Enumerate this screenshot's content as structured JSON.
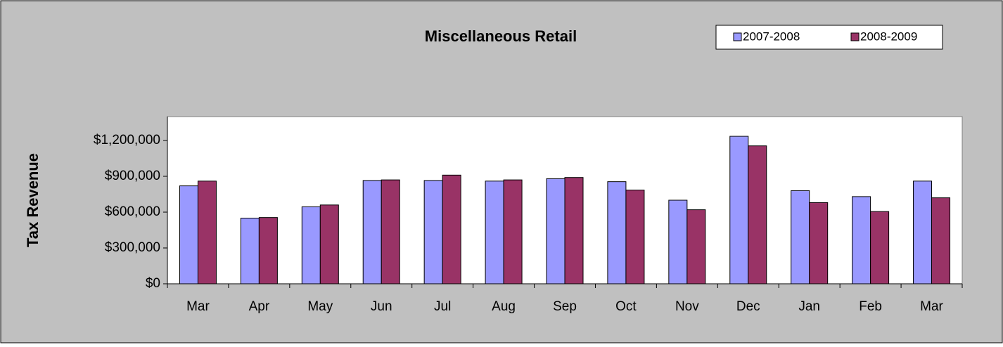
{
  "chart_data": {
    "type": "bar",
    "title": "Miscellaneous Retail",
    "y_label": "Tax Revenue",
    "categories": [
      "Mar",
      "Apr",
      "May",
      "Jun",
      "Jul",
      "Aug",
      "Sep",
      "Oct",
      "Nov",
      "Dec",
      "Jan",
      "Feb",
      "Mar"
    ],
    "series": [
      {
        "name": "2007-2008",
        "color": "#9999ff",
        "values": [
          820000,
          550000,
          645000,
          865000,
          865000,
          860000,
          880000,
          855000,
          700000,
          1235000,
          780000,
          730000,
          860000
        ]
      },
      {
        "name": "2008-2009",
        "color": "#993366",
        "values": [
          860000,
          555000,
          660000,
          870000,
          910000,
          870000,
          890000,
          785000,
          620000,
          1155000,
          680000,
          605000,
          720000
        ]
      }
    ],
    "ylim": [
      0,
      1400000
    ],
    "yticks": [
      {
        "value": 0,
        "label": "$0"
      },
      {
        "value": 300000,
        "label": "$300,000"
      },
      {
        "value": 600000,
        "label": "$600,000"
      },
      {
        "value": 900000,
        "label": "$900,000"
      },
      {
        "value": 1200000,
        "label": "$1,200,000"
      }
    ],
    "legend": "top-right"
  }
}
